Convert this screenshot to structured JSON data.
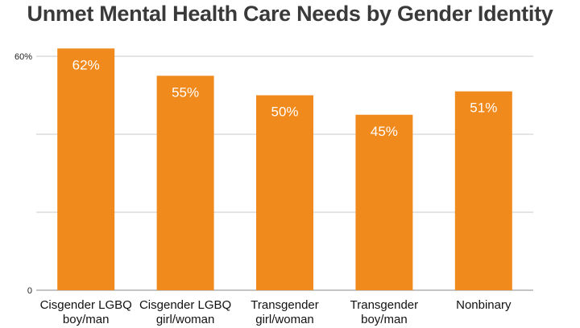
{
  "chart_data": {
    "type": "bar",
    "title": "Unmet Mental Health Care Needs by Gender Identity",
    "xlabel": "",
    "ylabel": "",
    "categories": [
      [
        "Cisgender LGBQ",
        "boy/man"
      ],
      [
        "Cisgender LGBQ",
        "girl/woman"
      ],
      [
        "Transgender",
        "girl/woman"
      ],
      [
        "Transgender",
        "boy/man"
      ],
      [
        "Nonbinary"
      ]
    ],
    "values": [
      62,
      55,
      50,
      45,
      51
    ],
    "data_labels": [
      "62%",
      "55%",
      "50%",
      "45%",
      "51%"
    ],
    "ylim": [
      0,
      60
    ],
    "y_ticks": [
      {
        "value": 0,
        "label": "0"
      },
      {
        "value": 60,
        "label": "60%"
      }
    ],
    "gridlines": [
      20,
      40,
      60
    ],
    "grid": true,
    "bar_color": "#f08a1c",
    "grid_color": "#c8c8c8"
  }
}
